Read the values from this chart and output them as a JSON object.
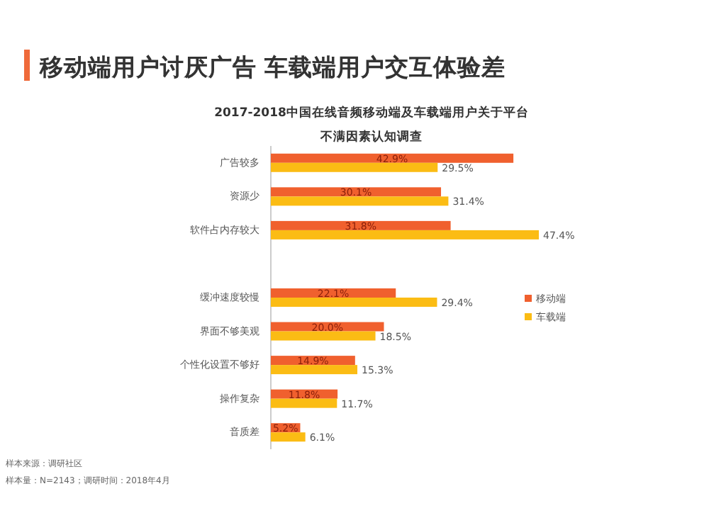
{
  "chart_data": {
    "type": "bar",
    "orientation": "horizontal",
    "title": "移动端用户讨厌广告 车载端用户交互体验差",
    "subtitle": "2017-2018中国在线音频移动端及车载端用户关于平台不满因素认知调查",
    "categories": [
      "广告较多",
      "资源少",
      "软件占内存较大",
      null,
      "缓冲速度较慢",
      "界面不够美观",
      "个性化设置不够好",
      "操作复杂",
      "音质差"
    ],
    "series": [
      {
        "name": "移动端",
        "color": "#f0602e",
        "values": [
          42.9,
          30.1,
          31.8,
          null,
          22.1,
          20.0,
          14.9,
          11.8,
          5.2
        ],
        "value_labels": [
          "42.9%",
          "30.1%",
          "31.8%",
          null,
          "22.1%",
          "20.0%",
          "14.9%",
          "11.8%",
          "5.2%"
        ]
      },
      {
        "name": "车载端",
        "color": "#fbbc14",
        "values": [
          29.5,
          31.4,
          47.4,
          null,
          29.4,
          18.5,
          15.3,
          11.7,
          6.1
        ],
        "value_labels": [
          "29.5%",
          "31.4%",
          "47.4%",
          null,
          "29.4%",
          "18.5%",
          "15.3%",
          "11.7%",
          "6.1%"
        ]
      }
    ],
    "legend": "right",
    "annotations": [
      "样本来源：调研社区",
      "样本量：N=2143；调研时间：2018年4月"
    ]
  }
}
